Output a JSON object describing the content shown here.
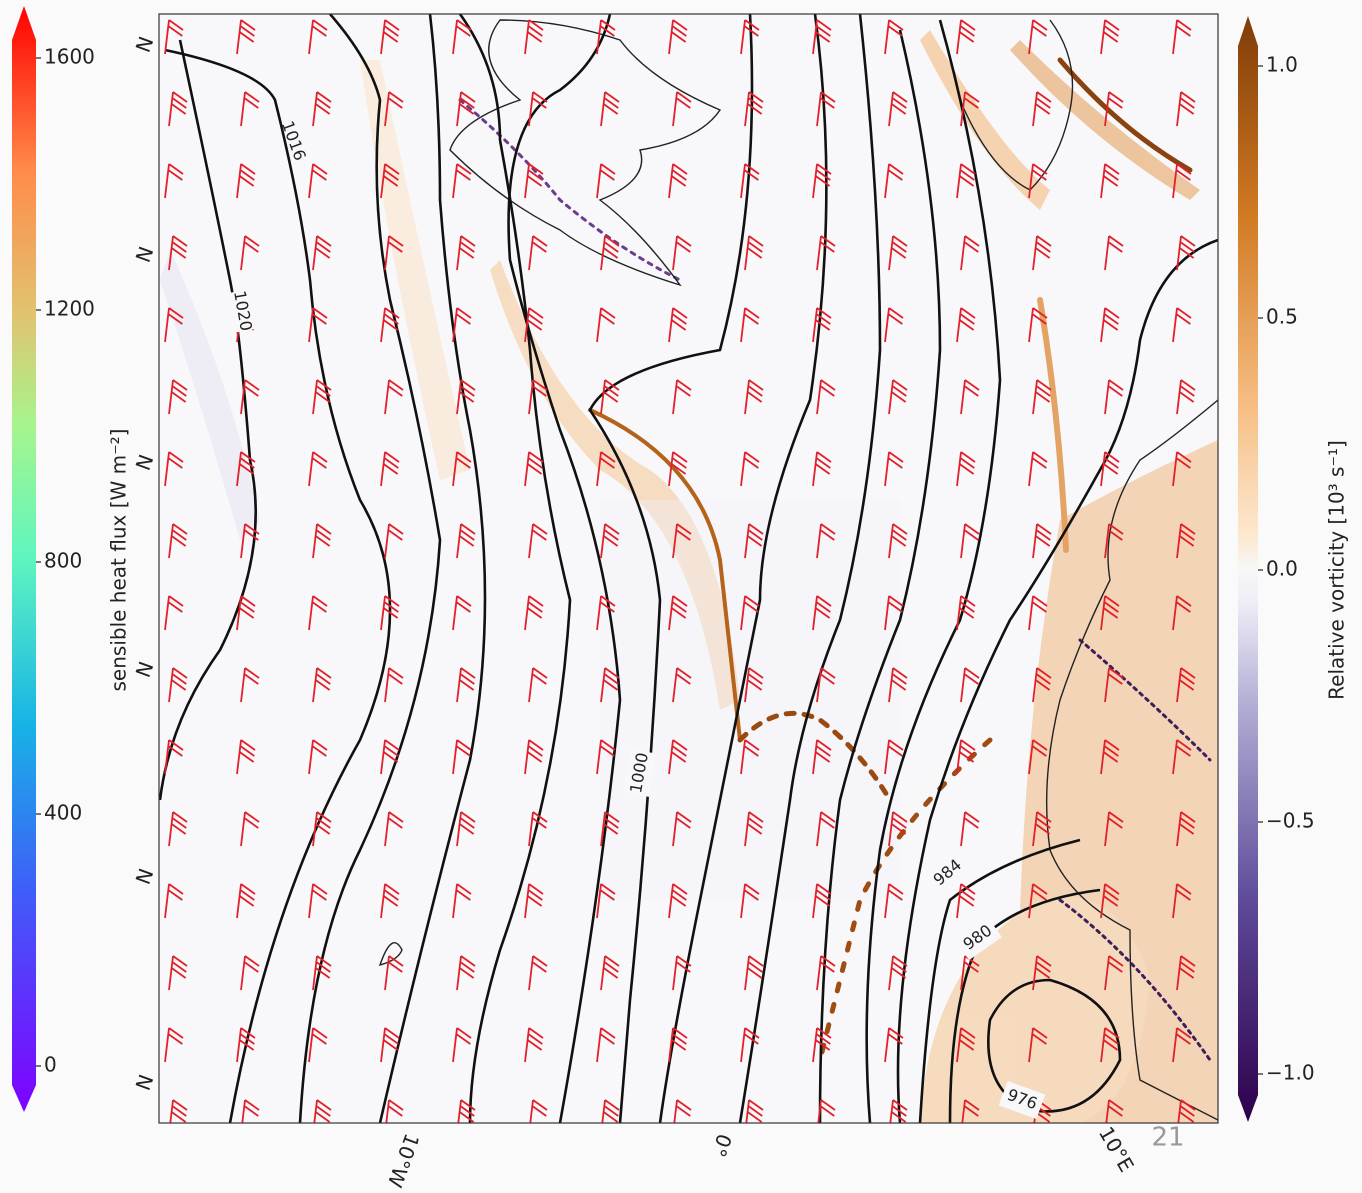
{
  "colorbars": [
    {
      "label": "sensible heat flux [W m⁻²]",
      "range": [
        0,
        1600
      ],
      "ticks": [
        0,
        400,
        800,
        1200,
        1600
      ]
    },
    {
      "label": "Relative vorticity [10³ s⁻¹]",
      "range": [
        -1.0,
        1.0
      ],
      "ticks": [
        {
          "value": -1.0,
          "label": "−1.0"
        },
        {
          "value": -0.5,
          "label": "−0.5"
        },
        {
          "value": 0.0,
          "label": "0.0"
        },
        {
          "value": 0.5,
          "label": "0.5"
        },
        {
          "value": 1.0,
          "label": "1.0"
        }
      ]
    }
  ],
  "isobar_labels": [
    "1016",
    "1020",
    "1000",
    "984",
    "980",
    "976"
  ],
  "lat_labels": [
    "N",
    "N",
    "N",
    "N",
    "N",
    "N"
  ],
  "lon_labels": [
    "10°W",
    "0°",
    "10°E"
  ],
  "page_number": "21"
}
